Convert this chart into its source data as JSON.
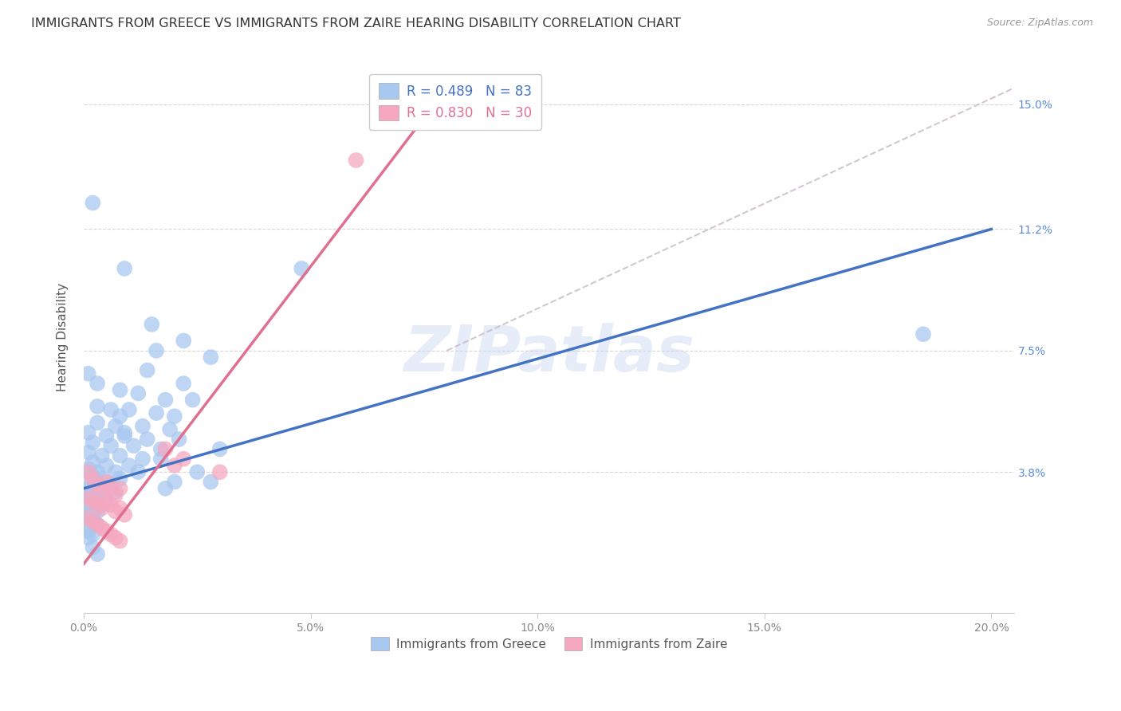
{
  "title": "IMMIGRANTS FROM GREECE VS IMMIGRANTS FROM ZAIRE HEARING DISABILITY CORRELATION CHART",
  "source": "Source: ZipAtlas.com",
  "xlabel_ticks": [
    "0.0%",
    "5.0%",
    "10.0%",
    "15.0%",
    "20.0%"
  ],
  "xlabel_vals": [
    0.0,
    0.05,
    0.1,
    0.15,
    0.2
  ],
  "ylabel_ticks": [
    "3.8%",
    "7.5%",
    "11.2%",
    "15.0%"
  ],
  "ylabel_vals": [
    0.038,
    0.075,
    0.112,
    0.15
  ],
  "xlim": [
    0.0,
    0.205
  ],
  "ylim": [
    -0.005,
    0.163
  ],
  "ylabel": "Hearing Disability",
  "legend_entries": [
    {
      "label": "Immigrants from Greece",
      "R": 0.489,
      "N": 83,
      "color": "#A8C8F0"
    },
    {
      "label": "Immigrants from Zaire",
      "R": 0.83,
      "N": 30,
      "color": "#F5A8C0"
    }
  ],
  "watermark": "ZIPatlas",
  "greece_scatter": [
    [
      0.002,
      0.12
    ],
    [
      0.009,
      0.1
    ],
    [
      0.015,
      0.083
    ],
    [
      0.022,
      0.078
    ],
    [
      0.028,
      0.073
    ],
    [
      0.001,
      0.068
    ],
    [
      0.003,
      0.065
    ],
    [
      0.008,
      0.063
    ],
    [
      0.012,
      0.062
    ],
    [
      0.018,
      0.06
    ],
    [
      0.024,
      0.06
    ],
    [
      0.003,
      0.058
    ],
    [
      0.006,
      0.057
    ],
    [
      0.01,
      0.057
    ],
    [
      0.016,
      0.056
    ],
    [
      0.02,
      0.055
    ],
    [
      0.003,
      0.053
    ],
    [
      0.007,
      0.052
    ],
    [
      0.013,
      0.052
    ],
    [
      0.019,
      0.051
    ],
    [
      0.001,
      0.05
    ],
    [
      0.005,
      0.049
    ],
    [
      0.009,
      0.049
    ],
    [
      0.014,
      0.048
    ],
    [
      0.021,
      0.048
    ],
    [
      0.002,
      0.047
    ],
    [
      0.006,
      0.046
    ],
    [
      0.011,
      0.046
    ],
    [
      0.017,
      0.045
    ],
    [
      0.001,
      0.044
    ],
    [
      0.004,
      0.043
    ],
    [
      0.008,
      0.043
    ],
    [
      0.013,
      0.042
    ],
    [
      0.002,
      0.041
    ],
    [
      0.005,
      0.04
    ],
    [
      0.01,
      0.04
    ],
    [
      0.001,
      0.039
    ],
    [
      0.003,
      0.038
    ],
    [
      0.007,
      0.038
    ],
    [
      0.012,
      0.038
    ],
    [
      0.002,
      0.037
    ],
    [
      0.004,
      0.036
    ],
    [
      0.008,
      0.036
    ],
    [
      0.001,
      0.035
    ],
    [
      0.003,
      0.035
    ],
    [
      0.006,
      0.034
    ],
    [
      0.001,
      0.033
    ],
    [
      0.002,
      0.033
    ],
    [
      0.004,
      0.032
    ],
    [
      0.007,
      0.032
    ],
    [
      0.001,
      0.031
    ],
    [
      0.002,
      0.03
    ],
    [
      0.003,
      0.03
    ],
    [
      0.005,
      0.03
    ],
    [
      0.001,
      0.029
    ],
    [
      0.002,
      0.029
    ],
    [
      0.004,
      0.028
    ],
    [
      0.001,
      0.027
    ],
    [
      0.002,
      0.027
    ],
    [
      0.003,
      0.026
    ],
    [
      0.001,
      0.025
    ],
    [
      0.002,
      0.025
    ],
    [
      0.001,
      0.024
    ],
    [
      0.002,
      0.023
    ],
    [
      0.003,
      0.022
    ],
    [
      0.001,
      0.021
    ],
    [
      0.001,
      0.02
    ],
    [
      0.002,
      0.019
    ],
    [
      0.001,
      0.018
    ],
    [
      0.002,
      0.015
    ],
    [
      0.003,
      0.013
    ],
    [
      0.02,
      0.035
    ],
    [
      0.018,
      0.033
    ],
    [
      0.025,
      0.038
    ],
    [
      0.008,
      0.055
    ],
    [
      0.03,
      0.045
    ],
    [
      0.028,
      0.035
    ],
    [
      0.185,
      0.08
    ],
    [
      0.048,
      0.1
    ],
    [
      0.016,
      0.075
    ],
    [
      0.022,
      0.065
    ],
    [
      0.014,
      0.069
    ],
    [
      0.009,
      0.05
    ],
    [
      0.017,
      0.042
    ]
  ],
  "zaire_scatter": [
    [
      0.001,
      0.038
    ],
    [
      0.002,
      0.036
    ],
    [
      0.003,
      0.034
    ],
    [
      0.004,
      0.032
    ],
    [
      0.005,
      0.035
    ],
    [
      0.006,
      0.033
    ],
    [
      0.007,
      0.031
    ],
    [
      0.008,
      0.033
    ],
    [
      0.001,
      0.03
    ],
    [
      0.002,
      0.029
    ],
    [
      0.003,
      0.028
    ],
    [
      0.004,
      0.027
    ],
    [
      0.005,
      0.029
    ],
    [
      0.006,
      0.028
    ],
    [
      0.007,
      0.026
    ],
    [
      0.008,
      0.027
    ],
    [
      0.009,
      0.025
    ],
    [
      0.001,
      0.024
    ],
    [
      0.002,
      0.023
    ],
    [
      0.003,
      0.022
    ],
    [
      0.004,
      0.021
    ],
    [
      0.005,
      0.02
    ],
    [
      0.006,
      0.019
    ],
    [
      0.007,
      0.018
    ],
    [
      0.008,
      0.017
    ],
    [
      0.02,
      0.04
    ],
    [
      0.022,
      0.042
    ],
    [
      0.06,
      0.133
    ],
    [
      0.018,
      0.045
    ],
    [
      0.03,
      0.038
    ]
  ],
  "greece_line": {
    "x0": 0.0,
    "y0": 0.033,
    "x1": 0.2,
    "y1": 0.112
  },
  "zaire_line": {
    "x0": 0.0,
    "y0": 0.01,
    "x1": 0.08,
    "y1": 0.155
  },
  "diag_line": {
    "x0": 0.08,
    "y0": 0.075,
    "x1": 0.205,
    "y1": 0.155
  },
  "greece_line_color": "#4472C4",
  "zaire_line_color": "#E07090",
  "background_color": "#FFFFFF",
  "grid_color": "#CCCCCC",
  "title_fontsize": 11.5,
  "axis_label_fontsize": 11,
  "tick_fontsize": 10,
  "legend_fontsize": 12,
  "source_fontsize": 9
}
